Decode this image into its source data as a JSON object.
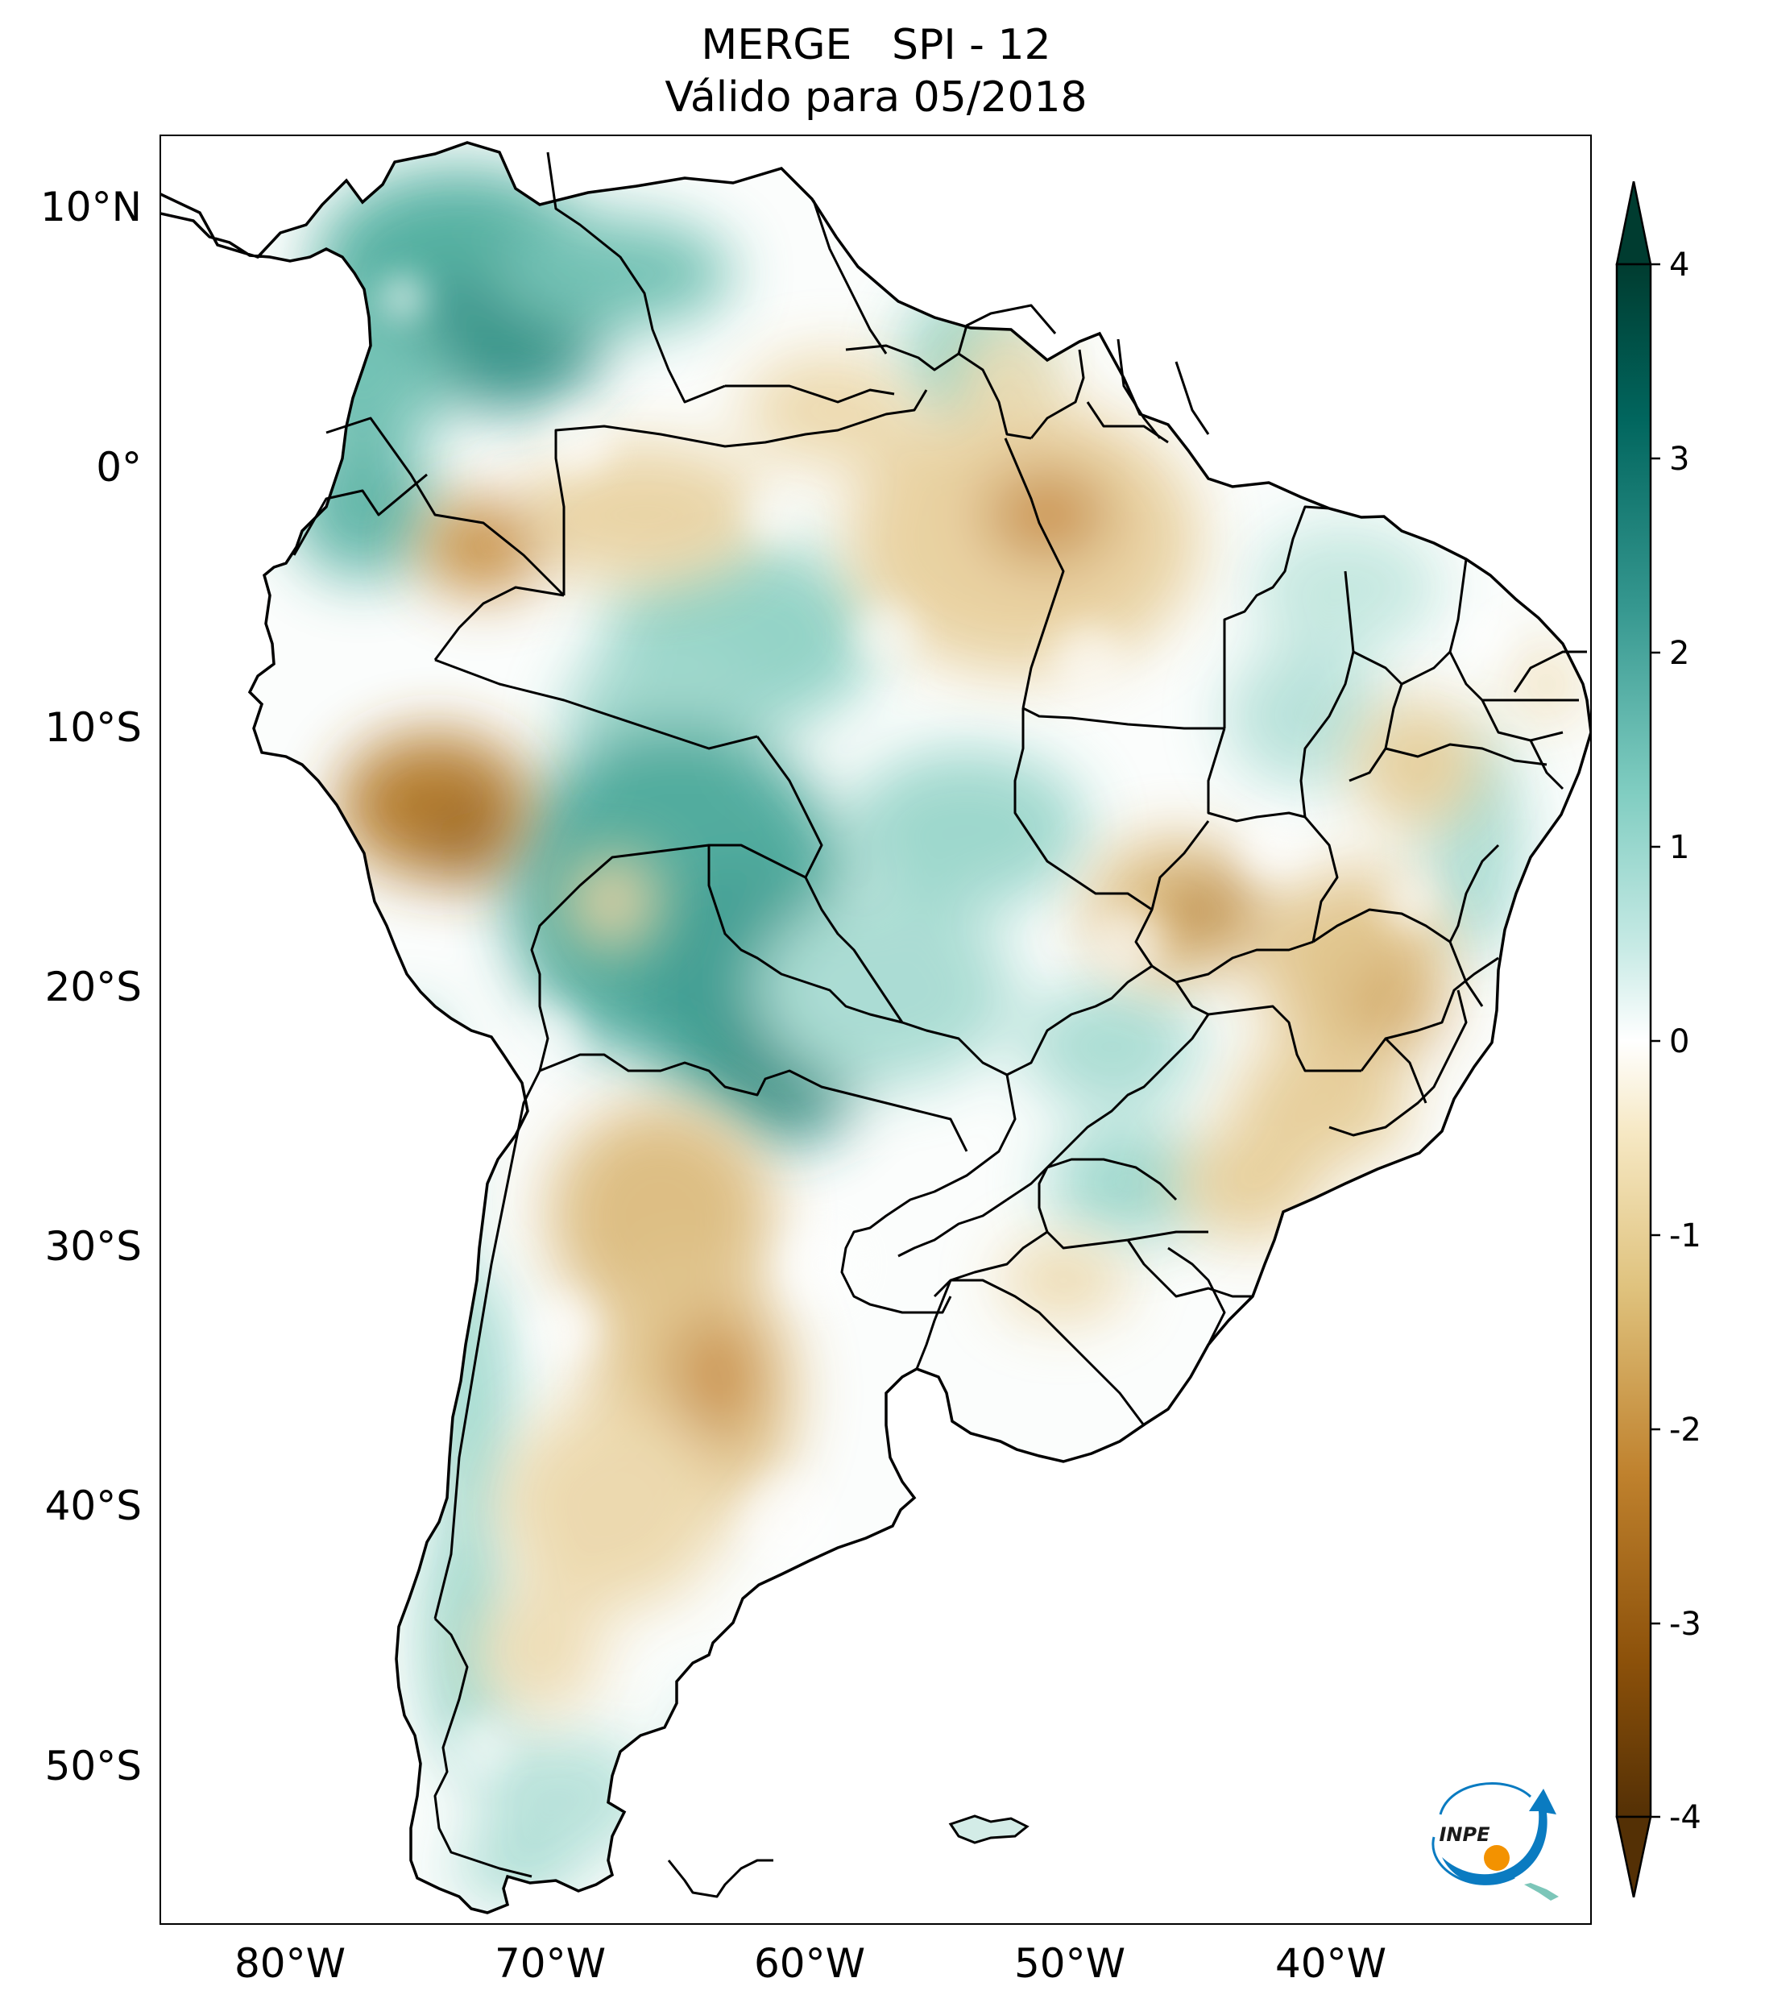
{
  "header": {
    "title_line1": "MERGE   SPI - 12",
    "title_line2": "Válido para 05/2018"
  },
  "axes": {
    "lat_ticks": [
      "10°N",
      "0°",
      "10°S",
      "20°S",
      "30°S",
      "40°S",
      "50°S"
    ],
    "lon_ticks": [
      "80°W",
      "70°W",
      "60°W",
      "50°W",
      "40°W"
    ]
  },
  "colorbar": {
    "ticks": [
      "4",
      "3",
      "2",
      "1",
      "0",
      "-1",
      "-2",
      "-3",
      "-4"
    ],
    "range": [
      -4,
      4
    ],
    "colors": {
      "dry_extreme": "#543005",
      "dry_strong": "#8c510a",
      "dry_moderate": "#bf812d",
      "dry_mild": "#dfc27d",
      "dry_slight": "#f6e8c3",
      "neutral": "#ffffff",
      "wet_slight": "#c7eae5",
      "wet_mild": "#80cdc1",
      "wet_moderate": "#35978f",
      "wet_strong": "#01665e",
      "wet_extreme": "#003c30"
    }
  },
  "logo": {
    "text": "INPE",
    "colors": {
      "blue": "#0a7bc1",
      "orange": "#f39200"
    }
  }
}
